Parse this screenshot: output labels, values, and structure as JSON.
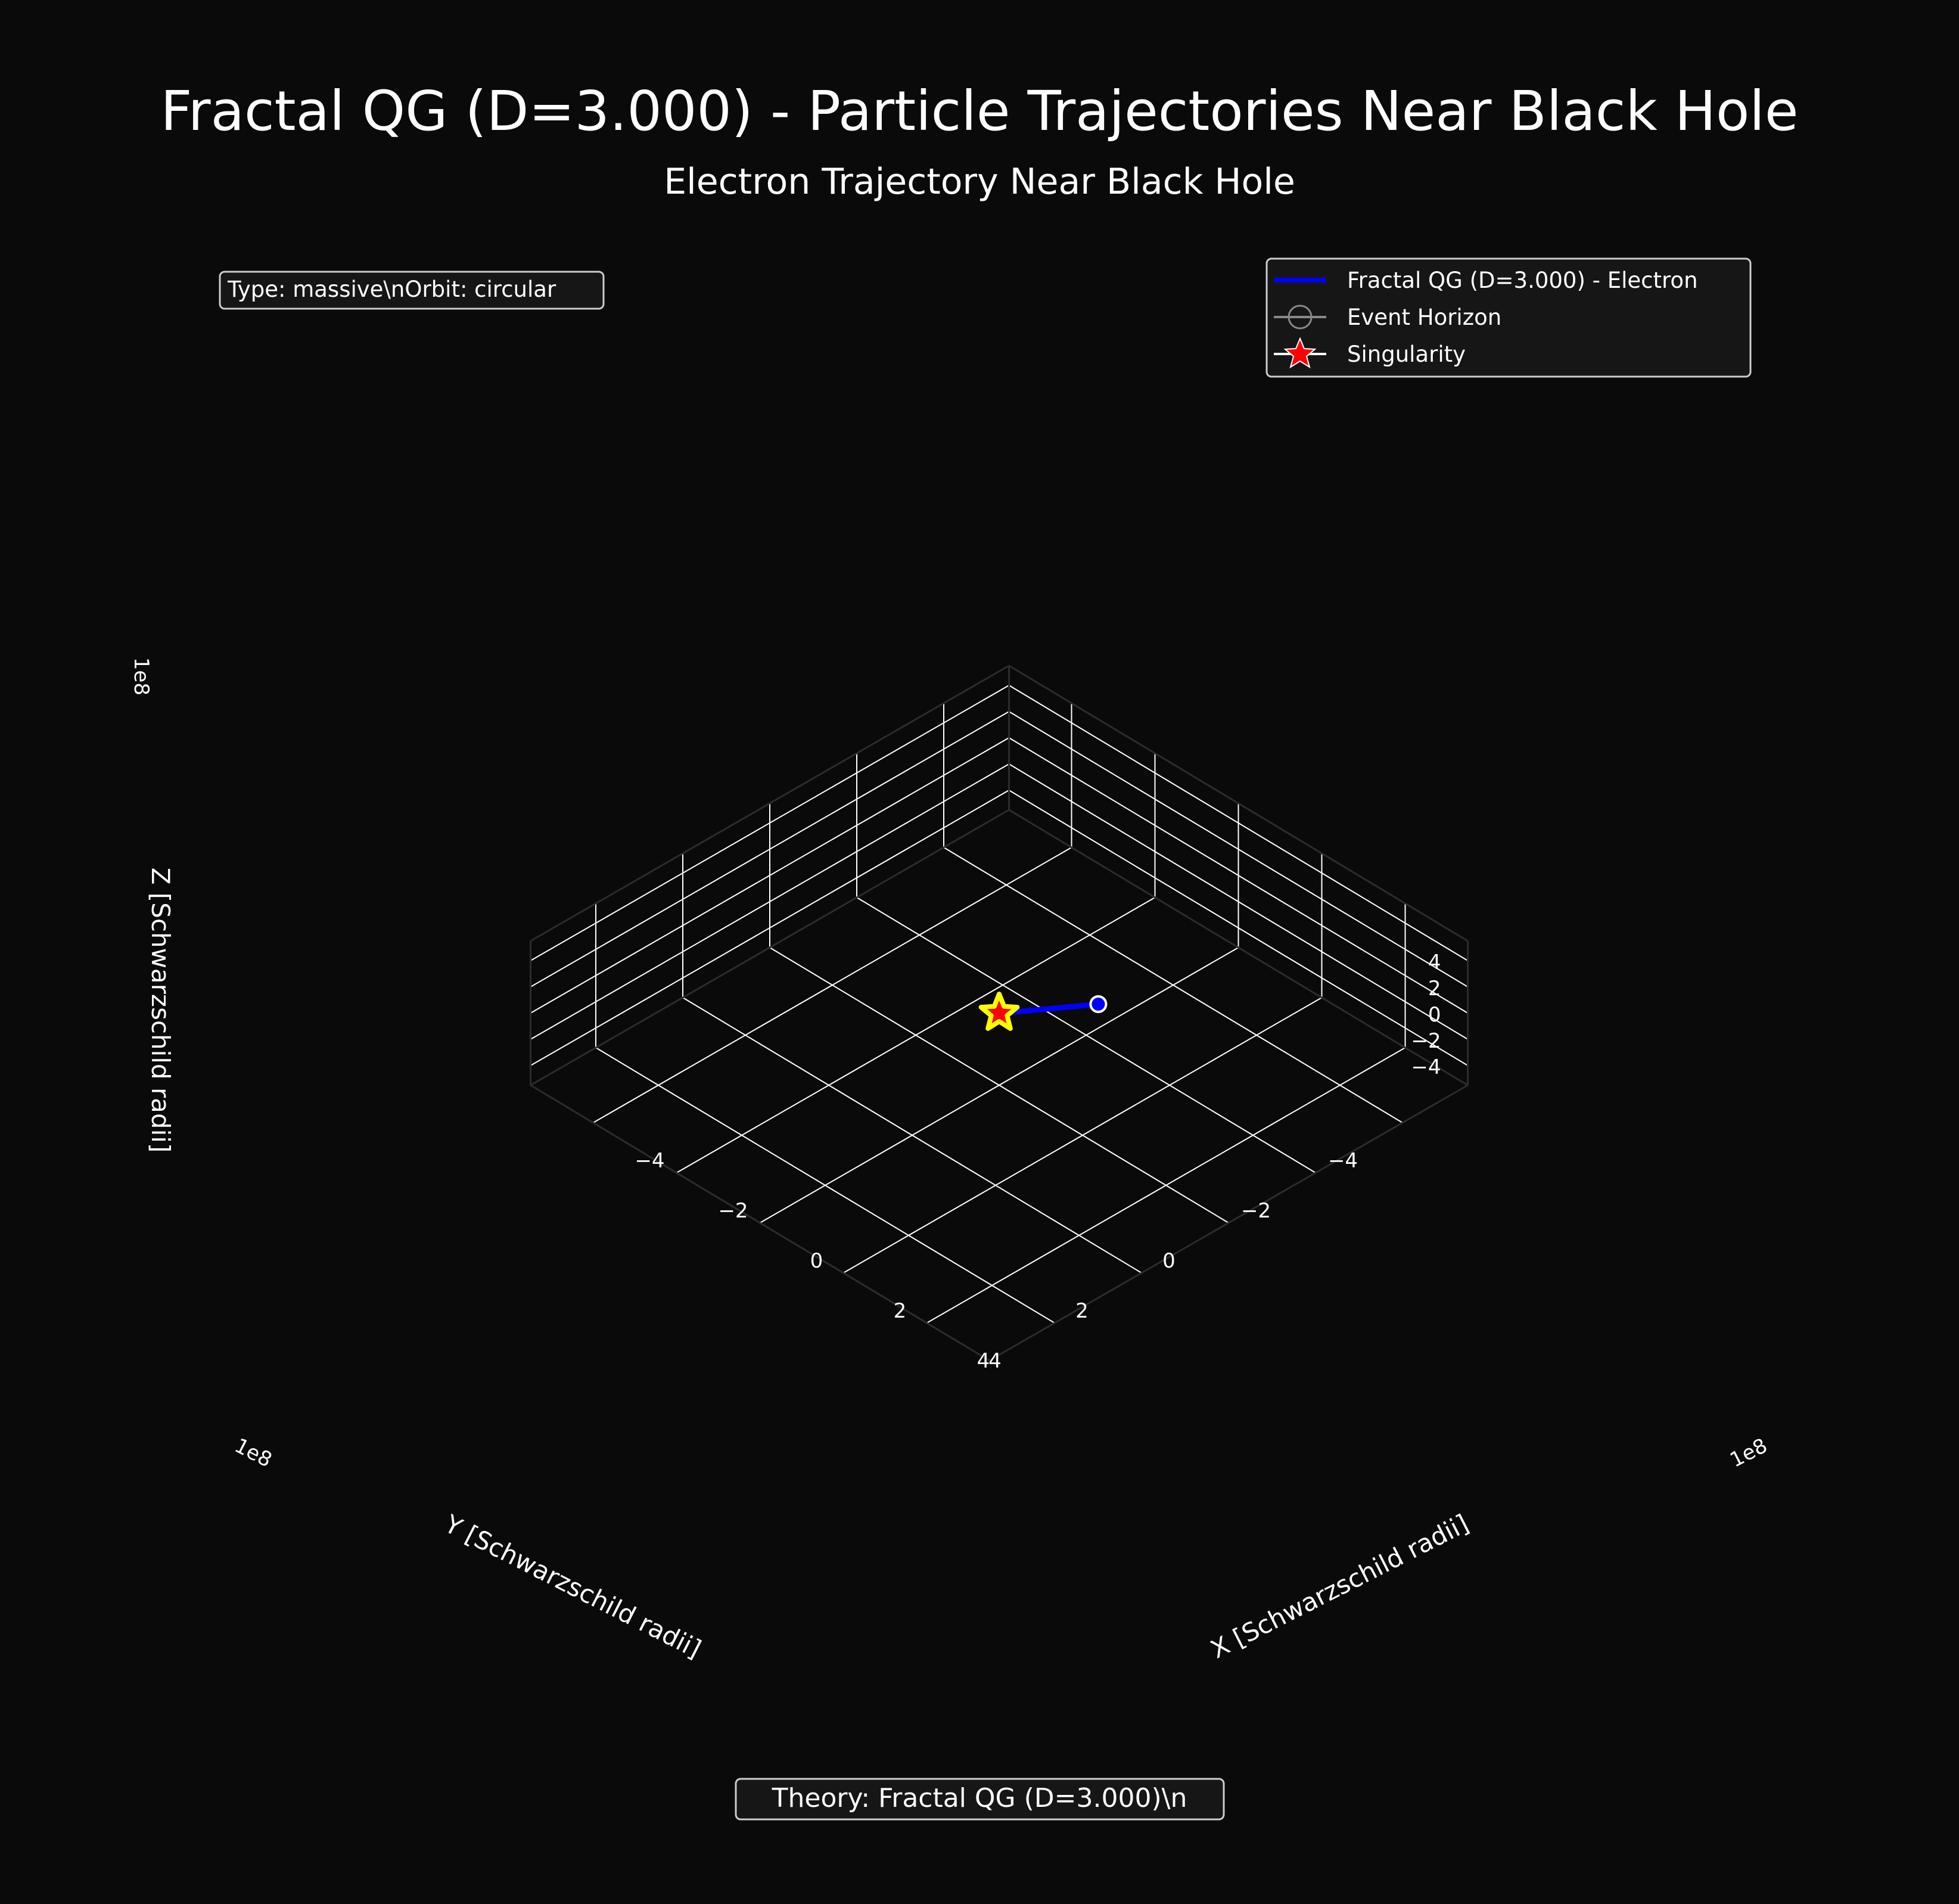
{
  "chart_data": {
    "type": "line",
    "projection": "3d",
    "title": "Fractal QG (D=3.000) - Particle Trajectories Near Black Hole",
    "subtitle": "Electron Trajectory Near Black Hole",
    "xlabel": "X [Schwarzschild radii]",
    "ylabel": "Y [Schwarzschild radii]",
    "zlabel": "Z [Schwarzschild radii]",
    "axis_multiplier": "1e8",
    "xlim": [
      -5.5,
      5.5
    ],
    "ylim": [
      -5.5,
      5.5
    ],
    "zlim": [
      -5.5,
      5.5
    ],
    "xticks": [
      -4,
      -2,
      0,
      2,
      4
    ],
    "yticks": [
      -4,
      -2,
      0,
      2,
      4
    ],
    "zticks": [
      -4,
      -2,
      0,
      2,
      4
    ],
    "tick_labels": [
      "−4",
      "−2",
      "0",
      "2",
      "4"
    ],
    "grid": true,
    "legend_position": "top-right",
    "series": [
      {
        "name": "Fractal QG (D=3.000) - Electron",
        "color": "#0000ff",
        "points": [
          [
            0.05,
            -0.05,
            0.0
          ],
          [
            0.5,
            -1.8,
            -1.8
          ]
        ],
        "start_marker": [
          0.5,
          -1.8,
          -1.8
        ]
      }
    ],
    "markers": [
      {
        "name": "Event Horizon",
        "shape": "circle",
        "color": "#888888",
        "point": [
          0,
          0,
          0
        ]
      },
      {
        "name": "Singularity",
        "shape": "star",
        "color": "#ff0000",
        "edge": "#ffff00",
        "point": [
          0,
          0,
          0
        ]
      }
    ]
  },
  "legend": {
    "entries": [
      {
        "label": "Fractal QG (D=3.000) - Electron",
        "icon": "blue-line"
      },
      {
        "label": "Event Horizon",
        "icon": "gray-circle-line"
      },
      {
        "label": "Singularity",
        "icon": "red-star-line"
      }
    ]
  },
  "info_box": "Type: massive\\nOrbit: circular",
  "theory_box": "Theory: Fractal QG (D=3.000)\\n"
}
